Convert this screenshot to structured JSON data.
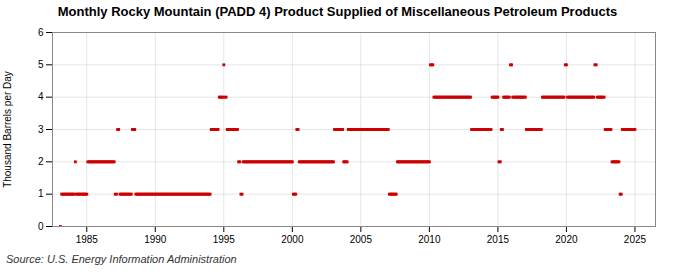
{
  "chart_data": {
    "type": "scatter",
    "title": "Monthly Rocky Mountain (PADD 4) Product Supplied of Miscellaneous Petroleum Products",
    "ylabel": "Thousand Barrels per Day",
    "source": "Source: U.S. Energy Information Administration",
    "color": "#cc0000",
    "marker": "square",
    "grid": true,
    "xlim": [
      1982.5,
      2026.5
    ],
    "ylim": [
      0,
      6
    ],
    "xticks": [
      1985,
      1990,
      1995,
      2000,
      2005,
      2010,
      2015,
      2020,
      2025
    ],
    "yticks": [
      0,
      1,
      2,
      3,
      4,
      5,
      6
    ],
    "x": [
      1983.08,
      1983.17,
      1983.25,
      1983.33,
      1983.42,
      1983.5,
      1983.58,
      1983.67,
      1983.75,
      1983.83,
      1983.92,
      1984.0,
      1984.08,
      1984.17,
      1984.25,
      1984.33,
      1984.42,
      1984.5,
      1984.58,
      1984.67,
      1984.75,
      1984.83,
      1984.92,
      1985.0,
      1985.08,
      1985.17,
      1985.25,
      1985.33,
      1985.42,
      1985.5,
      1985.58,
      1985.67,
      1985.75,
      1985.83,
      1985.92,
      1986.0,
      1986.08,
      1986.17,
      1986.25,
      1986.33,
      1986.42,
      1986.5,
      1986.58,
      1986.67,
      1986.75,
      1986.83,
      1986.92,
      1987.0,
      1987.08,
      1987.17,
      1987.25,
      1987.33,
      1987.42,
      1987.5,
      1987.58,
      1987.67,
      1987.75,
      1987.83,
      1987.92,
      1988.0,
      1988.08,
      1988.17,
      1988.25,
      1988.33,
      1988.42,
      1988.5,
      1988.58,
      1988.67,
      1988.75,
      1988.83,
      1988.92,
      1989.0,
      1989.08,
      1989.17,
      1989.25,
      1989.33,
      1989.42,
      1989.5,
      1989.58,
      1989.67,
      1989.75,
      1989.83,
      1989.92,
      1990.0,
      1990.08,
      1990.17,
      1990.25,
      1990.33,
      1990.42,
      1990.5,
      1990.58,
      1990.67,
      1990.75,
      1990.83,
      1990.92,
      1991.0,
      1991.08,
      1991.17,
      1991.25,
      1991.33,
      1991.42,
      1991.5,
      1991.58,
      1991.67,
      1991.75,
      1991.83,
      1991.92,
      1992.0,
      1992.08,
      1992.17,
      1992.25,
      1992.33,
      1992.42,
      1992.5,
      1992.58,
      1992.67,
      1992.75,
      1992.83,
      1992.92,
      1993.0,
      1993.08,
      1993.17,
      1993.25,
      1993.33,
      1993.42,
      1993.5,
      1993.58,
      1993.67,
      1993.75,
      1993.83,
      1993.92,
      1994.0,
      1994.08,
      1994.17,
      1994.25,
      1994.33,
      1994.42,
      1994.5,
      1994.58,
      1994.67,
      1994.75,
      1994.83,
      1994.92,
      1995.0,
      1995.08,
      1995.17,
      1995.25,
      1995.33,
      1995.42,
      1995.5,
      1995.58,
      1995.67,
      1995.75,
      1995.83,
      1995.92,
      1996.0,
      1996.08,
      1996.17,
      1996.25,
      1996.33,
      1996.42,
      1996.5,
      1996.58,
      1996.67,
      1996.75,
      1996.83,
      1996.92,
      1997.0,
      1997.08,
      1997.17,
      1997.25,
      1997.33,
      1997.42,
      1997.5,
      1997.58,
      1997.67,
      1997.75,
      1997.83,
      1997.92,
      1998.0,
      1998.08,
      1998.17,
      1998.25,
      1998.33,
      1998.42,
      1998.5,
      1998.58,
      1998.67,
      1998.75,
      1998.83,
      1998.92,
      1999.0,
      1999.08,
      1999.17,
      1999.25,
      1999.33,
      1999.42,
      1999.5,
      1999.58,
      1999.67,
      1999.75,
      1999.83,
      1999.92,
      2000.0,
      2000.08,
      2000.17,
      2000.25,
      2000.33,
      2000.42,
      2000.5,
      2000.58,
      2000.67,
      2000.75,
      2000.83,
      2000.92,
      2001.0,
      2001.08,
      2001.17,
      2001.25,
      2001.33,
      2001.42,
      2001.5,
      2001.58,
      2001.67,
      2001.75,
      2001.83,
      2001.92,
      2002.0,
      2002.08,
      2002.17,
      2002.25,
      2002.33,
      2002.42,
      2002.5,
      2002.58,
      2002.67,
      2002.75,
      2002.83,
      2002.92,
      2003.0,
      2003.08,
      2003.17,
      2003.25,
      2003.33,
      2003.42,
      2003.5,
      2003.58,
      2003.67,
      2003.75,
      2003.83,
      2003.92,
      2004.0,
      2004.08,
      2004.17,
      2004.25,
      2004.33,
      2004.42,
      2004.5,
      2004.58,
      2004.67,
      2004.75,
      2004.83,
      2004.92,
      2005.0,
      2005.08,
      2005.17,
      2005.25,
      2005.33,
      2005.42,
      2005.5,
      2005.58,
      2005.67,
      2005.75,
      2005.83,
      2005.92,
      2006.0,
      2006.08,
      2006.17,
      2006.25,
      2006.33,
      2006.42,
      2006.5,
      2006.58,
      2006.67,
      2006.75,
      2006.83,
      2006.92,
      2007.0,
      2007.08,
      2007.17,
      2007.25,
      2007.33,
      2007.42,
      2007.5,
      2007.58,
      2007.67,
      2007.75,
      2007.83,
      2007.92,
      2008.0,
      2008.08,
      2008.17,
      2008.25,
      2008.33,
      2008.42,
      2008.5,
      2008.58,
      2008.67,
      2008.75,
      2008.83,
      2008.92,
      2009.0,
      2009.08,
      2009.17,
      2009.25,
      2009.33,
      2009.42,
      2009.5,
      2009.58,
      2009.67,
      2009.75,
      2009.83,
      2009.92,
      2010.0,
      2010.08,
      2010.17,
      2010.25,
      2010.33,
      2010.42,
      2010.5,
      2010.58,
      2010.67,
      2010.75,
      2010.83,
      2010.92,
      2011.0,
      2011.08,
      2011.17,
      2011.25,
      2011.33,
      2011.42,
      2011.5,
      2011.58,
      2011.67,
      2011.75,
      2011.83,
      2011.92,
      2012.0,
      2012.08,
      2012.17,
      2012.25,
      2012.33,
      2012.42,
      2012.5,
      2012.58,
      2012.67,
      2012.75,
      2012.83,
      2012.92,
      2013.0,
      2013.08,
      2013.17,
      2013.25,
      2013.33,
      2013.42,
      2013.5,
      2013.58,
      2013.67,
      2013.75,
      2013.83,
      2013.92,
      2014.0,
      2014.08,
      2014.17,
      2014.25,
      2014.33,
      2014.42,
      2014.5,
      2014.58,
      2014.67,
      2014.75,
      2014.83,
      2014.92,
      2015.0,
      2015.08,
      2015.17,
      2015.25,
      2015.33,
      2015.42,
      2015.5,
      2015.58,
      2015.67,
      2015.75,
      2015.83,
      2015.92,
      2016.0,
      2016.08,
      2016.17,
      2016.25,
      2016.33,
      2016.42,
      2016.5,
      2016.58,
      2016.67,
      2016.75,
      2016.83,
      2016.92,
      2017.0,
      2017.08,
      2017.17,
      2017.25,
      2017.33,
      2017.42,
      2017.5,
      2017.58,
      2017.67,
      2017.75,
      2017.83,
      2017.92,
      2018.0,
      2018.08,
      2018.17,
      2018.25,
      2018.33,
      2018.42,
      2018.5,
      2018.58,
      2018.67,
      2018.75,
      2018.83,
      2018.92,
      2019.0,
      2019.08,
      2019.17,
      2019.25,
      2019.33,
      2019.42,
      2019.5,
      2019.58,
      2019.67,
      2019.75,
      2019.83,
      2019.92,
      2020.0,
      2020.08,
      2020.17,
      2020.25,
      2020.33,
      2020.42,
      2020.5,
      2020.58,
      2020.67,
      2020.75,
      2020.83,
      2020.92,
      2021.0,
      2021.08,
      2021.17,
      2021.25,
      2021.33,
      2021.42,
      2021.5,
      2021.58,
      2021.67,
      2021.75,
      2021.83,
      2021.92,
      2022.0,
      2022.08,
      2022.17,
      2022.25,
      2022.33,
      2022.42,
      2022.5,
      2022.58,
      2022.67,
      2022.75,
      2022.83,
      2022.92,
      2023.0,
      2023.08,
      2023.17,
      2023.25,
      2023.33,
      2023.42,
      2023.5,
      2023.58,
      2023.67,
      2023.75,
      2023.83,
      2023.92,
      2024.0,
      2024.08,
      2024.17,
      2024.25,
      2024.33,
      2024.42,
      2024.5,
      2024.58,
      2024.67,
      2024.75,
      2024.83,
      2024.92,
      2025.0
    ],
    "values": [
      0,
      1,
      1,
      1,
      1,
      1,
      1,
      1,
      1,
      1,
      1,
      1,
      1,
      2,
      1,
      1,
      1,
      1,
      1,
      1,
      1,
      1,
      1,
      1,
      2,
      2,
      2,
      2,
      2,
      2,
      2,
      2,
      2,
      2,
      2,
      2,
      2,
      2,
      2,
      2,
      2,
      2,
      2,
      2,
      2,
      2,
      2,
      2,
      1,
      1,
      3,
      3,
      1,
      1,
      1,
      1,
      1,
      1,
      1,
      1,
      1,
      1,
      1,
      3,
      3,
      3,
      1,
      1,
      1,
      1,
      1,
      1,
      1,
      1,
      1,
      1,
      1,
      1,
      1,
      1,
      1,
      1,
      1,
      1,
      1,
      1,
      1,
      1,
      1,
      1,
      1,
      1,
      1,
      1,
      1,
      1,
      1,
      1,
      1,
      1,
      1,
      1,
      1,
      1,
      1,
      1,
      1,
      1,
      1,
      1,
      1,
      1,
      1,
      1,
      1,
      1,
      1,
      1,
      1,
      1,
      1,
      1,
      1,
      1,
      1,
      1,
      1,
      1,
      1,
      1,
      1,
      1,
      3,
      3,
      3,
      3,
      3,
      3,
      3,
      4,
      4,
      4,
      4,
      5,
      4,
      4,
      3,
      3,
      3,
      3,
      3,
      3,
      3,
      3,
      3,
      3,
      2,
      2,
      1,
      1,
      2,
      2,
      2,
      2,
      2,
      2,
      2,
      2,
      2,
      2,
      2,
      2,
      2,
      2,
      2,
      2,
      2,
      2,
      2,
      2,
      2,
      2,
      2,
      2,
      2,
      2,
      2,
      2,
      2,
      2,
      2,
      2,
      2,
      2,
      2,
      2,
      2,
      2,
      2,
      2,
      2,
      2,
      2,
      2,
      1,
      1,
      1,
      3,
      3,
      2,
      2,
      2,
      2,
      2,
      2,
      2,
      2,
      2,
      2,
      2,
      2,
      2,
      2,
      2,
      2,
      2,
      2,
      2,
      2,
      2,
      2,
      2,
      2,
      2,
      2,
      2,
      2,
      2,
      2,
      2,
      3,
      3,
      3,
      3,
      3,
      3,
      3,
      3,
      2,
      2,
      2,
      2,
      3,
      3,
      3,
      3,
      3,
      3,
      3,
      3,
      3,
      3,
      3,
      3,
      3,
      3,
      3,
      3,
      3,
      3,
      3,
      3,
      3,
      3,
      3,
      3,
      3,
      3,
      3,
      3,
      3,
      3,
      3,
      3,
      3,
      3,
      3,
      3,
      1,
      1,
      1,
      1,
      1,
      1,
      1,
      2,
      2,
      2,
      2,
      2,
      2,
      2,
      2,
      2,
      2,
      2,
      2,
      2,
      2,
      2,
      2,
      2,
      2,
      2,
      2,
      2,
      2,
      2,
      2,
      2,
      2,
      2,
      2,
      2,
      5,
      5,
      5,
      4,
      4,
      4,
      4,
      4,
      4,
      4,
      4,
      4,
      4,
      4,
      4,
      4,
      4,
      4,
      4,
      4,
      4,
      4,
      4,
      4,
      4,
      4,
      4,
      4,
      4,
      4,
      4,
      4,
      4,
      4,
      4,
      4,
      3,
      3,
      3,
      3,
      3,
      3,
      3,
      3,
      3,
      3,
      3,
      3,
      3,
      3,
      3,
      3,
      3,
      3,
      4,
      4,
      4,
      4,
      4,
      4,
      2,
      2,
      3,
      3,
      4,
      4,
      4,
      4,
      4,
      4,
      5,
      5,
      4,
      4,
      4,
      4,
      4,
      4,
      4,
      4,
      4,
      4,
      4,
      4,
      3,
      3,
      3,
      3,
      3,
      3,
      3,
      3,
      3,
      3,
      3,
      3,
      3,
      3,
      4,
      4,
      4,
      4,
      4,
      4,
      4,
      4,
      4,
      4,
      4,
      4,
      4,
      4,
      4,
      4,
      4,
      4,
      4,
      4,
      5,
      5,
      4,
      4,
      4,
      4,
      4,
      4,
      4,
      4,
      4,
      4,
      4,
      4,
      4,
      4,
      4,
      4,
      4,
      4,
      4,
      4,
      4,
      4,
      4,
      4,
      5,
      5,
      4,
      4,
      4,
      4,
      4,
      4,
      4,
      3,
      3,
      3,
      3,
      3,
      3,
      2,
      2,
      2,
      2,
      2,
      2,
      2,
      1,
      1,
      3,
      3,
      3,
      3,
      3,
      3,
      3,
      3,
      3,
      3,
      3,
      3
    ]
  }
}
